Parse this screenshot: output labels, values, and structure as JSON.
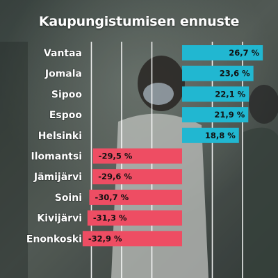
{
  "colors": {
    "positive": "#21b7d1",
    "negative": "#ee4d63",
    "background": "#4a5650",
    "text": "#ffffff",
    "value_text": "#111111",
    "gridline": "#ffffff"
  },
  "chart_data": {
    "type": "bar",
    "orientation": "horizontal",
    "title": "Kaupungistumisen ennuste",
    "categories": [
      "Vantaa",
      "Jomala",
      "Sipoo",
      "Espoo",
      "Helsinki",
      "Ilomantsi",
      "Jämijärvi",
      "Soini",
      "Kivijärvi",
      "Enonkoski"
    ],
    "values": [
      26.7,
      23.6,
      22.1,
      21.9,
      18.8,
      -29.5,
      -29.6,
      -30.7,
      -31.3,
      -32.9
    ],
    "value_labels": [
      "26,7 %",
      "23,6 %",
      "22,1 %",
      "21,9 %",
      "18,8 %",
      "-29,5 %",
      "-29,6 %",
      "-30,7 %",
      "-31,3 %",
      "-32,9 %"
    ],
    "xlim": [
      -35,
      25
    ],
    "grid_step": 10,
    "grid": true,
    "xlabel": "",
    "ylabel": ""
  }
}
